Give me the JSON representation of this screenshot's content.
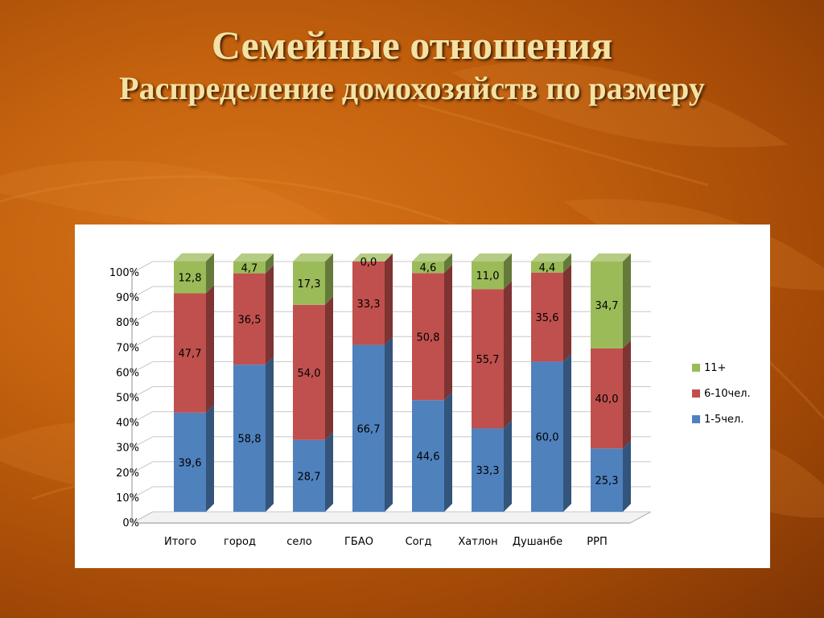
{
  "slide": {
    "title": "Семейные отношения",
    "subtitle": "Распределение домохозяйств по размеру"
  },
  "chart_data": {
    "type": "bar",
    "stacked": true,
    "percent": true,
    "three_d": true,
    "categories": [
      "Итого",
      "город",
      "село",
      "ГБАО",
      "Согд",
      "Хатлон",
      "Душанбе",
      "РРП"
    ],
    "series": [
      {
        "name": "1-5чел.",
        "color": "#4f81bd",
        "values": [
          39.6,
          58.8,
          28.7,
          66.7,
          44.6,
          33.3,
          60.0,
          25.3
        ]
      },
      {
        "name": "6-10чел.",
        "color": "#c0504d",
        "values": [
          47.7,
          36.5,
          54.0,
          33.3,
          50.8,
          55.7,
          35.6,
          40.0
        ]
      },
      {
        "name": "11+",
        "color": "#9bbb59",
        "values": [
          12.8,
          4.7,
          17.3,
          0.0,
          4.6,
          11.0,
          4.4,
          34.7
        ]
      }
    ],
    "data_labels": [
      [
        "39,6",
        "58,8",
        "28,7",
        "66,7",
        "44,6",
        "33,3",
        "60,0",
        "25,3"
      ],
      [
        "47,7",
        "36,5",
        "54,0",
        "33,3",
        "50,8",
        "55,7",
        "35,6",
        "40,0"
      ],
      [
        "12,8",
        "4,7",
        "17,3",
        "0,0",
        "4,6",
        "11,0",
        "4,4",
        "34,7"
      ]
    ],
    "y_ticks": [
      "0%",
      "10%",
      "20%",
      "30%",
      "40%",
      "50%",
      "60%",
      "70%",
      "80%",
      "90%",
      "100%"
    ],
    "ylim": [
      0,
      100
    ],
    "grid": true,
    "legend_position": "right",
    "legend_order": [
      2,
      1,
      0
    ]
  }
}
